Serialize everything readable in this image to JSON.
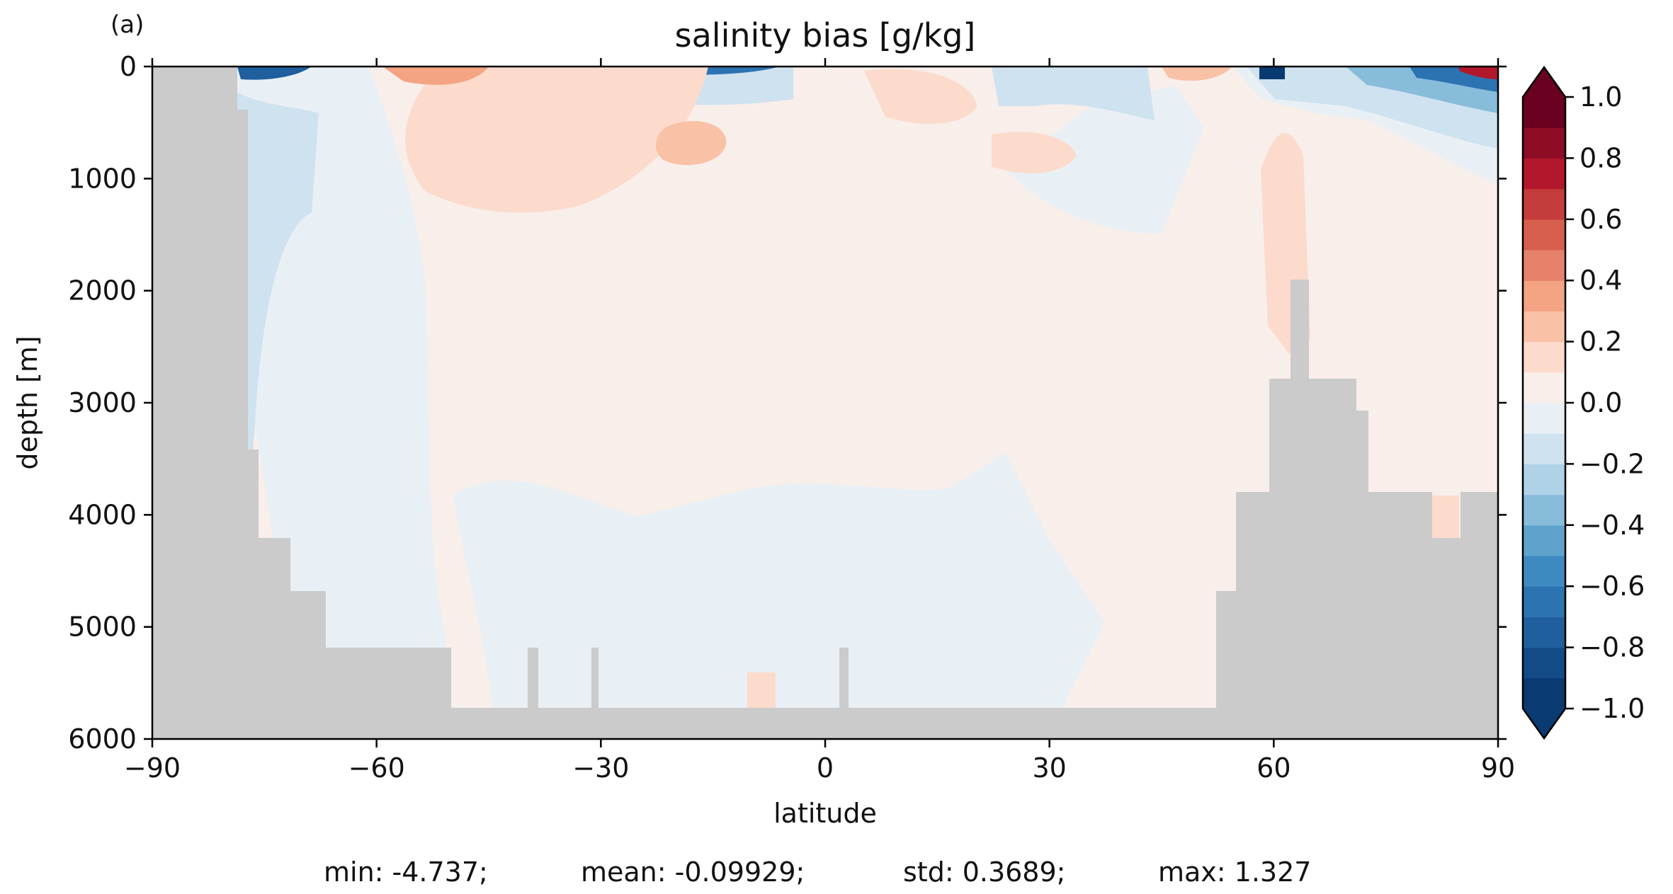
{
  "panel_label": "(a)",
  "chart_data": {
    "type": "heatmap",
    "title": "salinity bias [g/kg]",
    "xlabel": "latitude",
    "ylabel": "depth [m]",
    "xlim": [
      -90,
      90
    ],
    "ylim": [
      6000,
      0
    ],
    "y_inverted": true,
    "xticks": [
      -90,
      -60,
      -30,
      0,
      30,
      60,
      90
    ],
    "xtick_labels": [
      "−90",
      "−60",
      "−30",
      "0",
      "30",
      "60",
      "90"
    ],
    "yticks": [
      0,
      1000,
      2000,
      3000,
      4000,
      5000,
      6000
    ],
    "ytick_labels": [
      "0",
      "1000",
      "2000",
      "3000",
      "4000",
      "5000",
      "6000"
    ],
    "colorbar": {
      "colormap": "RdBu_r",
      "vmin": -1.0,
      "vmax": 1.0,
      "extend": "both",
      "levels": [
        -1.0,
        -0.9,
        -0.8,
        -0.7,
        -0.6,
        -0.5,
        -0.4,
        -0.3,
        -0.2,
        -0.1,
        0.0,
        0.1,
        0.2,
        0.3,
        0.4,
        0.5,
        0.6,
        0.7,
        0.8,
        0.9,
        1.0
      ],
      "ticks": [
        1.0,
        0.8,
        0.6,
        0.4,
        0.2,
        0.0,
        -0.2,
        -0.4,
        -0.6,
        -0.8,
        -1.0
      ],
      "tick_labels": [
        "1.0",
        "0.8",
        "0.6",
        "0.4",
        "0.2",
        "0.0",
        "−0.2",
        "−0.4",
        "−0.6",
        "−0.8",
        "−1.0"
      ],
      "colors": [
        "#0a3a72",
        "#134b87",
        "#1f5f9e",
        "#2c73b2",
        "#3d8ac0",
        "#5fa3cd",
        "#88bcdb",
        "#afd2e7",
        "#cfe2ef",
        "#e9f0f5",
        "#f8eeea",
        "#fcdbcc",
        "#f9c1a6",
        "#f4a383",
        "#e7826a",
        "#d6604d",
        "#c43c3c",
        "#b2182b",
        "#8e0c25",
        "#6a0120"
      ]
    },
    "stats": {
      "min": "min: -4.737;",
      "mean": "mean: -0.09929;",
      "std": "std: 0.3689;",
      "max": "max: 1.327"
    }
  }
}
